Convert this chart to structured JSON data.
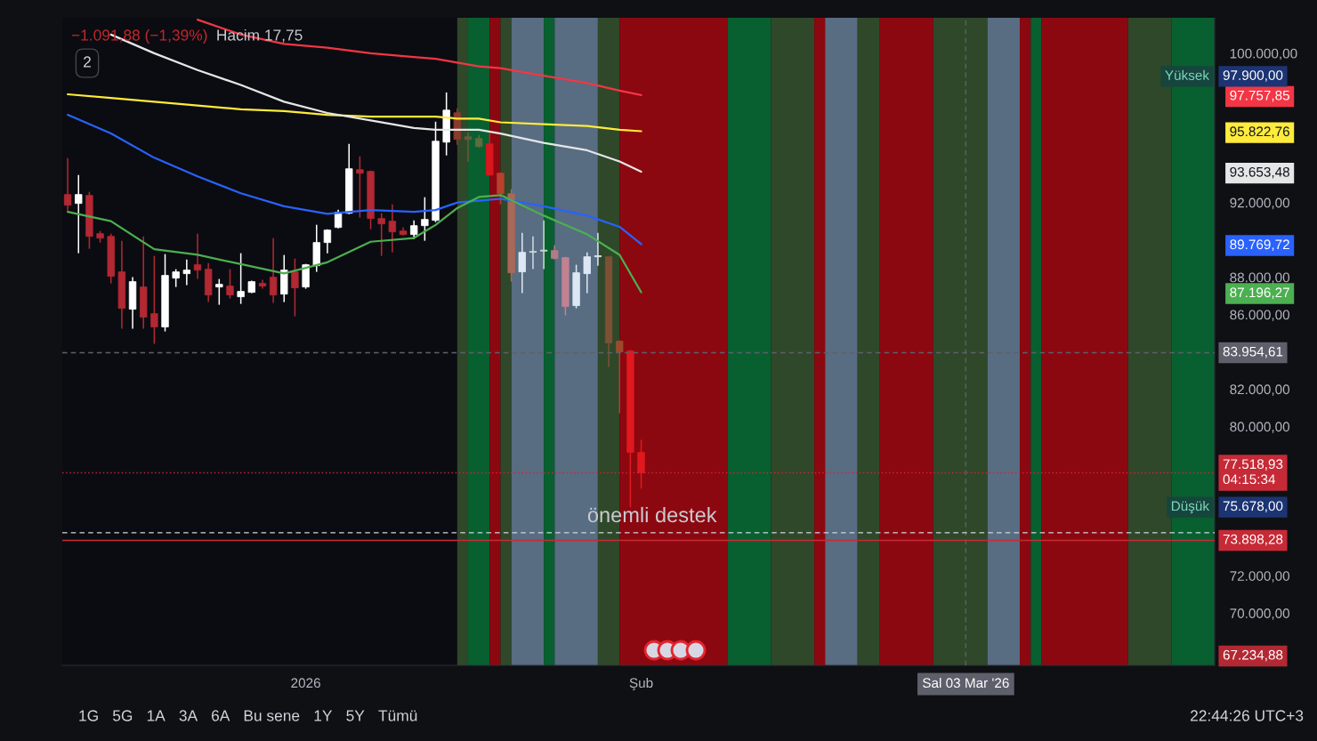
{
  "chart_data": {
    "type": "candlestick",
    "subtitle": "−1.091,88 (−1,39%)",
    "xlim": [
      "2025-12-09T12:00",
      "2026-03-26"
    ],
    "ylim": [
      67200,
      101900
    ],
    "xticks": [
      {
        "value": "2026-01-01",
        "label": "2026"
      },
      {
        "value": "2026-02-01",
        "label": "Şub"
      },
      {
        "value": "2026-03-03",
        "label": "Sal 03 Mar '26"
      }
    ],
    "yticks": [
      {
        "value": 70000,
        "label": "70.000,00"
      },
      {
        "value": 72000,
        "label": "72.000,00"
      },
      {
        "value": 80000,
        "label": "80.000,00"
      },
      {
        "value": 82000,
        "label": "82.000,00"
      },
      {
        "value": 86000,
        "label": "86.000,00"
      },
      {
        "value": 87196.27,
        "label": "87.196,27"
      },
      {
        "value": 88000,
        "label": "88.000,00"
      },
      {
        "value": 89769.72,
        "label": "89.769,72"
      },
      {
        "value": 92000,
        "label": "92.000,00"
      },
      {
        "value": 93653.48,
        "label": "93.653,48"
      },
      {
        "value": 95822.76,
        "label": "95.822,76"
      },
      {
        "value": 97757.85,
        "label": "97.757,85"
      },
      {
        "value": 100000,
        "label": "100.000,00"
      }
    ],
    "grid": false,
    "bands": [
      {
        "axis": "x",
        "from": "2026-01-15",
        "to": "2026-01-16",
        "color": "#2f4829"
      },
      {
        "axis": "x",
        "from": "2026-01-16",
        "to": "2026-01-18",
        "color": "#086030"
      },
      {
        "axis": "x",
        "from": "2026-01-18",
        "to": "2026-01-19",
        "color": "#8c0810"
      },
      {
        "axis": "x",
        "from": "2026-01-19",
        "to": "2026-01-20",
        "color": "#2f4829"
      },
      {
        "axis": "x",
        "from": "2026-01-20",
        "to": "2026-01-23",
        "color": "#586c82"
      },
      {
        "axis": "x",
        "from": "2026-01-23",
        "to": "2026-01-24",
        "color": "#086030"
      },
      {
        "axis": "x",
        "from": "2026-01-24",
        "to": "2026-01-28",
        "color": "#586c82"
      },
      {
        "axis": "x",
        "from": "2026-01-28",
        "to": "2026-01-30",
        "color": "#2f4829"
      },
      {
        "axis": "x",
        "from": "2026-01-30",
        "to": "2026-02-09",
        "color": "#8c0810"
      },
      {
        "axis": "x",
        "from": "2026-02-09",
        "to": "2026-02-13",
        "color": "#086030"
      },
      {
        "axis": "x",
        "from": "2026-02-13",
        "to": "2026-02-17",
        "color": "#2f4829"
      },
      {
        "axis": "x",
        "from": "2026-02-17",
        "to": "2026-02-18",
        "color": "#8c0810"
      },
      {
        "axis": "x",
        "from": "2026-02-18",
        "to": "2026-02-21",
        "color": "#586c82"
      },
      {
        "axis": "x",
        "from": "2026-02-21",
        "to": "2026-02-23",
        "color": "#2f4829"
      },
      {
        "axis": "x",
        "from": "2026-02-23",
        "to": "2026-02-28",
        "color": "#8c0810"
      },
      {
        "axis": "x",
        "from": "2026-02-28",
        "to": "2026-03-05",
        "color": "#2f4829"
      },
      {
        "axis": "x",
        "from": "2026-03-05",
        "to": "2026-03-08",
        "color": "#586c82"
      },
      {
        "axis": "x",
        "from": "2026-03-08",
        "to": "2026-03-09",
        "color": "#8c0810"
      },
      {
        "axis": "x",
        "from": "2026-03-09",
        "to": "2026-03-10",
        "color": "#086030"
      },
      {
        "axis": "x",
        "from": "2026-03-10",
        "to": "2026-03-18",
        "color": "#8c0810"
      },
      {
        "axis": "x",
        "from": "2026-03-18",
        "to": "2026-03-22",
        "color": "#2f4829"
      },
      {
        "axis": "x",
        "from": "2026-03-22",
        "to": "2026-03-26",
        "color": "#086030"
      }
    ],
    "series": [
      {
        "x": [
          "2025-12-10",
          "2025-12-11",
          "2025-12-12",
          "2025-12-13",
          "2025-12-14",
          "2025-12-15",
          "2025-12-16",
          "2025-12-17",
          "2025-12-18",
          "2025-12-19",
          "2025-12-20",
          "2025-12-21",
          "2025-12-22",
          "2025-12-23",
          "2025-12-24",
          "2025-12-25",
          "2025-12-26",
          "2025-12-27",
          "2025-12-28",
          "2025-12-29",
          "2025-12-30",
          "2025-12-31",
          "2026-01-01",
          "2026-01-02",
          "2026-01-03",
          "2026-01-04",
          "2026-01-05",
          "2026-01-06",
          "2026-01-07",
          "2026-01-08",
          "2026-01-09",
          "2026-01-10",
          "2026-01-11",
          "2026-01-12",
          "2026-01-13",
          "2026-01-14",
          "2026-01-15",
          "2026-01-16",
          "2026-01-17",
          "2026-01-18",
          "2026-01-19",
          "2026-01-20",
          "2026-01-21",
          "2026-01-22",
          "2026-01-23",
          "2026-01-24",
          "2026-01-25",
          "2026-01-26",
          "2026-01-27",
          "2026-01-28",
          "2026-01-29",
          "2026-01-30",
          "2026-01-31",
          "2026-02-01"
        ],
        "ohlc": [
          [
            92429,
            94381,
            91571,
            91857
          ],
          [
            91952,
            93476,
            89286,
            92429
          ],
          [
            92381,
            92571,
            89524,
            90190
          ],
          [
            90333,
            90476,
            89857,
            90095
          ],
          [
            90190,
            90333,
            87667,
            88048
          ],
          [
            88286,
            89952,
            85238,
            86333
          ],
          [
            86286,
            88000,
            85238,
            87762
          ],
          [
            87476,
            90190,
            85238,
            85857
          ],
          [
            86048,
            89143,
            84429,
            85333
          ],
          [
            85333,
            89238,
            85095,
            88095
          ],
          [
            87952,
            88429,
            87476,
            88286
          ],
          [
            88190,
            88952,
            87571,
            88381
          ],
          [
            88667,
            90333,
            87905,
            88381
          ],
          [
            88429,
            88762,
            86667,
            87048
          ],
          [
            87476,
            87905,
            86524,
            87619
          ],
          [
            87524,
            88429,
            86857,
            87048
          ],
          [
            86952,
            89286,
            86571,
            87238
          ],
          [
            87190,
            87810,
            87143,
            87762
          ],
          [
            87667,
            87857,
            87381,
            87524
          ],
          [
            88000,
            90095,
            86619,
            87048
          ],
          [
            87095,
            89190,
            86667,
            88381
          ],
          [
            88286,
            89000,
            85905,
            87429
          ],
          [
            87476,
            88714,
            87381,
            88667
          ],
          [
            88619,
            90810,
            88286,
            89857
          ],
          [
            89857,
            90571,
            89286,
            90524
          ],
          [
            90667,
            91619,
            90619,
            91476
          ],
          [
            91429,
            95143,
            91381,
            93810
          ],
          [
            93762,
            94476,
            91190,
            93571
          ],
          [
            93667,
            93714,
            90571,
            91143
          ],
          [
            91143,
            91429,
            89143,
            90857
          ],
          [
            91000,
            91905,
            89333,
            90429
          ],
          [
            90476,
            90667,
            90238,
            90286
          ],
          [
            90286,
            91048,
            90048,
            90762
          ],
          [
            90762,
            92286,
            89952,
            91095
          ],
          [
            91048,
            96333,
            90952,
            95286
          ],
          [
            95238,
            97900,
            94524,
            96952
          ],
          [
            96810,
            97048,
            95095,
            95381
          ],
          [
            95524,
            95762,
            94190,
            95381
          ],
          [
            95429,
            95619,
            94952,
            95000
          ],
          [
            95143,
            95810,
            93429,
            93476
          ],
          [
            93571,
            93619,
            91905,
            92476
          ],
          [
            92476,
            92714,
            87762,
            88238
          ],
          [
            88286,
            90381,
            87143,
            89333
          ],
          [
            89333,
            90190,
            88429,
            89381
          ],
          [
            89400,
            91048,
            88429,
            89450
          ],
          [
            89429,
            89714,
            88952,
            89000
          ],
          [
            89048,
            89095,
            85952,
            86429
          ],
          [
            86476,
            88667,
            86333,
            88238
          ],
          [
            88190,
            89333,
            87143,
            89095
          ],
          [
            89095,
            90381,
            88619,
            89150
          ],
          [
            89095,
            89143,
            83190,
            84476
          ],
          [
            84571,
            84619,
            80714,
            84000
          ],
          [
            84048,
            84095,
            75678,
            78610
          ],
          [
            78610,
            79286,
            76667,
            77518.93
          ]
        ],
        "colors": [
          "#b22833",
          "#ffffff",
          "#b22833",
          "#b22833",
          "#b22833",
          "#b22833",
          "#ffffff",
          "#b22833",
          "#b22833",
          "#ffffff",
          "#ffffff",
          "#ffffff",
          "#b22833",
          "#b22833",
          "#ffffff",
          "#b22833",
          "#ffffff",
          "#ffffff",
          "#b22833",
          "#b22833",
          "#ffffff",
          "#b22833",
          "#ffffff",
          "#ffffff",
          "#ffffff",
          "#ffffff",
          "#ffffff",
          "#b22833",
          "#b22833",
          "#b22833",
          "#b22833",
          "#b22833",
          "#ffffff",
          "#ffffff",
          "#ffffff",
          "#ffffff",
          "#8a3b2c",
          "#6b5a3a",
          "#5e6c40",
          "#d9161e",
          "#b8402c",
          "#a8685a",
          "#dce7f4",
          "#cfd9e3",
          "#c9dfca",
          "#b27b88",
          "#c08291",
          "#dce7f4",
          "#dce7f4",
          "#dce7f4",
          "#7b5236",
          "#9c4a2e",
          "#e0191f",
          "#e0191f"
        ]
      },
      {
        "type": "line",
        "color": "#f23645",
        "x": [
          "2025-12-22",
          "2025-12-26",
          "2025-12-30",
          "2026-01-03",
          "2026-01-07",
          "2026-01-11",
          "2026-01-13",
          "2026-01-15",
          "2026-01-17",
          "2026-01-19",
          "2026-01-23",
          "2026-01-27",
          "2026-01-30",
          "2026-02-01"
        ],
        "values": [
          101800,
          101000,
          100500,
          100300,
          100000,
          99800,
          99700,
          99500,
          99300,
          99200,
          98800,
          98400,
          98000,
          97757.85
        ]
      },
      {
        "type": "line",
        "color": "#ffeb3b",
        "x": [
          "2025-12-10",
          "2025-12-14",
          "2025-12-18",
          "2025-12-22",
          "2025-12-26",
          "2025-12-30",
          "2026-01-03",
          "2026-01-07",
          "2026-01-11",
          "2026-01-13",
          "2026-01-15",
          "2026-01-17",
          "2026-01-19",
          "2026-01-23",
          "2026-01-27",
          "2026-01-30",
          "2026-02-01"
        ],
        "values": [
          97800,
          97600,
          97400,
          97200,
          97000,
          96900,
          96700,
          96600,
          96600,
          96600,
          96500,
          96500,
          96300,
          96200,
          96100,
          95900,
          95822.76
        ]
      },
      {
        "type": "line",
        "color": "#e6e6e6",
        "x": [
          "2025-12-14",
          "2025-12-18",
          "2025-12-22",
          "2025-12-26",
          "2025-12-30",
          "2026-01-03",
          "2026-01-07",
          "2026-01-11",
          "2026-01-13",
          "2026-01-15",
          "2026-01-17",
          "2026-01-19",
          "2026-01-23",
          "2026-01-27",
          "2026-01-30",
          "2026-02-01"
        ],
        "values": [
          101000,
          100000,
          99100,
          98300,
          97400,
          96800,
          96400,
          96000,
          95900,
          95900,
          95900,
          95700,
          95200,
          94800,
          94200,
          93653.48
        ]
      },
      {
        "type": "line",
        "color": "#2962ff",
        "x": [
          "2025-12-10",
          "2025-12-14",
          "2025-12-18",
          "2025-12-22",
          "2025-12-26",
          "2025-12-30",
          "2026-01-03",
          "2026-01-07",
          "2026-01-11",
          "2026-01-13",
          "2026-01-15",
          "2026-01-17",
          "2026-01-19",
          "2026-01-23",
          "2026-01-27",
          "2026-01-30",
          "2026-02-01"
        ],
        "values": [
          96700,
          95700,
          94400,
          93400,
          92500,
          91800,
          91400,
          91600,
          91500,
          91600,
          92000,
          92100,
          92200,
          91800,
          91300,
          90700,
          89769.72
        ]
      },
      {
        "type": "line",
        "color": "#4caf50",
        "x": [
          "2025-12-10",
          "2025-12-14",
          "2025-12-18",
          "2025-12-22",
          "2025-12-26",
          "2025-12-30",
          "2026-01-03",
          "2026-01-07",
          "2026-01-11",
          "2026-01-13",
          "2026-01-15",
          "2026-01-17",
          "2026-01-19",
          "2026-01-23",
          "2026-01-27",
          "2026-01-30",
          "2026-02-01"
        ],
        "values": [
          91500,
          91000,
          89500,
          89200,
          88700,
          88200,
          88800,
          89900,
          90100,
          90800,
          91700,
          92300,
          92400,
          91300,
          90300,
          89200,
          87196.27
        ]
      }
    ],
    "ref_lines": [
      {
        "axis": "y",
        "value": 83954.61,
        "label": "83.954,61",
        "color": "#5d606b",
        "line_style": "dashed"
      },
      {
        "axis": "x",
        "value": "2026-03-03",
        "color": "#5d606b",
        "line_style": "dashed"
      },
      {
        "axis": "y",
        "value": 77518.93,
        "label": "77.518,93\n04:15:34",
        "color": "#c62a36",
        "line_style": "dotted"
      },
      {
        "axis": "y",
        "value": 74310,
        "color": "#d1d4dc",
        "line_style": "dashed"
      },
      {
        "axis": "y",
        "value": 73898.28,
        "label": "73.898,28",
        "color": "#c62a36",
        "line_style": "solid"
      }
    ],
    "annotations": [
      "Hacim 17,75",
      "2",
      {
        "text": "önemli destek",
        "x": "2026-02-02",
        "y": 74310
      },
      "Yüksek",
      "97.900,00",
      "Düşük",
      "75.678,00",
      "67.234,88",
      "1G",
      "5G",
      "1A",
      "3A",
      "6A",
      "Bu sene",
      "1Y",
      "5Y",
      "Tümü",
      "22:44:26 UTC+3"
    ]
  }
}
